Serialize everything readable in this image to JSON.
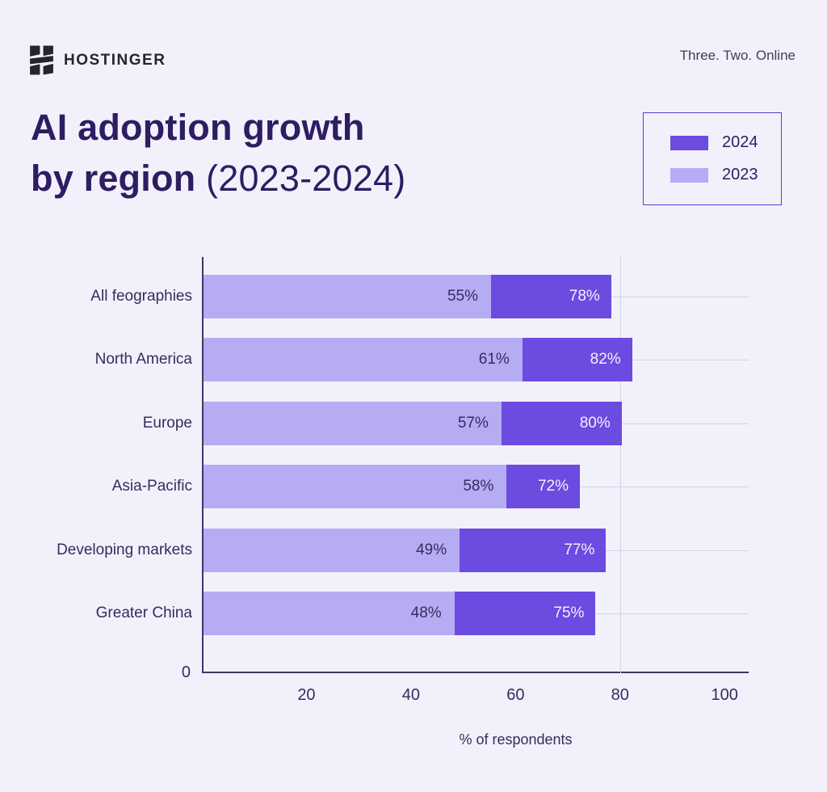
{
  "page": {
    "background": "#F2F1FB"
  },
  "header": {
    "brand": "HOSTINGER",
    "tagline": "Three. Two. Online"
  },
  "title": {
    "line1": "AI adoption growth",
    "line2_bold": "by region ",
    "line2_regular": "(2023-2024)"
  },
  "legend": {
    "items": [
      {
        "label": "2024",
        "color": "#6C4BE0"
      },
      {
        "label": "2023",
        "color": "#B6ACF4"
      }
    ]
  },
  "chart_data": {
    "type": "bar",
    "orientation": "horizontal",
    "title": "AI adoption growth by region (2023-2024)",
    "categories": [
      "All feographies",
      "North America",
      "Europe",
      "Asia-Pacific",
      "Developing markets",
      "Greater China"
    ],
    "series": [
      {
        "name": "2023",
        "color": "#B6ACF4",
        "values": [
          55,
          61,
          57,
          58,
          49,
          48
        ]
      },
      {
        "name": "2024",
        "color": "#6C4BE0",
        "values": [
          78,
          82,
          80,
          72,
          77,
          75
        ]
      }
    ],
    "xlabel": "% of respondents",
    "x_ticks": [
      20,
      40,
      60,
      80,
      100
    ],
    "x_origin_label": "0",
    "xlim": [
      0,
      104.6
    ],
    "gridline_x": 80,
    "grid": "row-lines",
    "legend_position": "top-right",
    "value_suffix": "%",
    "value_color_on_light": "#332D5E",
    "value_color_on_dark": "#F3F1FC"
  }
}
